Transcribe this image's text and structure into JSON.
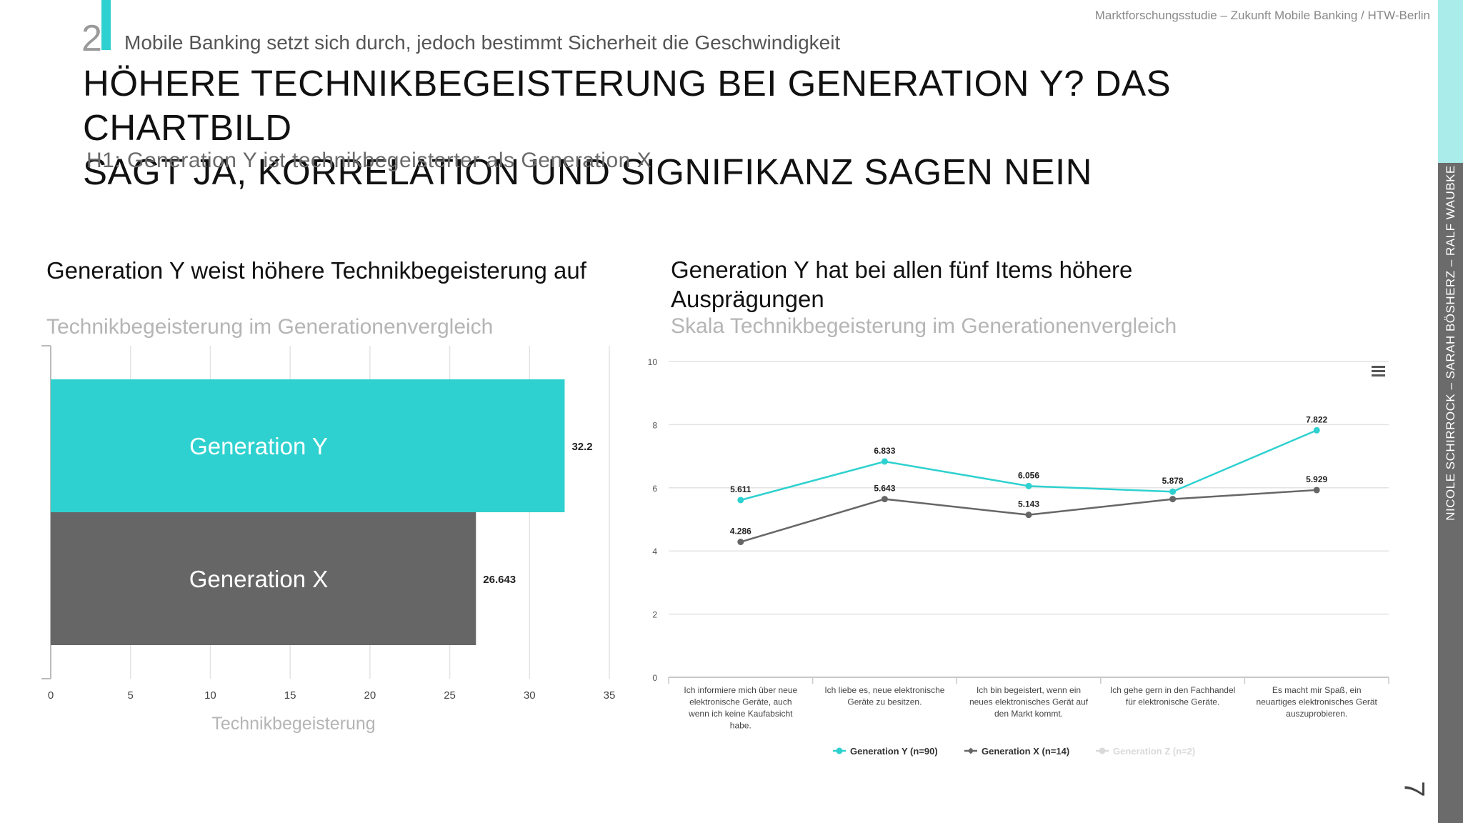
{
  "header": {
    "section_number": "2",
    "section_title": "Mobile Banking setzt sich durch, jedoch bestimmt Sicherheit die Geschwindigkeit",
    "study_title": "Marktforschungsstudie – Zukunft Mobile Banking / HTW-Berlin",
    "main_title_line1": "HÖHERE TECHNIKBEGEISTERUNG BEI GENERATION Y? DAS CHARTBILD",
    "main_title_line2": "SAGT JA, KORRELATION UND SIGNIFIKANZ SAGEN NEIN",
    "subtitle": "H1: Generation Y ist technikbegeisterter als Generation X"
  },
  "sidebar": {
    "credit": "NICOLE SCHIRROCK – SARAH BÖSHERZ – RALF WAUBKE",
    "page_number": "7"
  },
  "colors": {
    "accent": "#2ed1cf",
    "gen_y": "#2ed1cf",
    "gen_x": "#666667",
    "gen_z": "#d9d9d9",
    "grid": "#e3e3e3"
  },
  "left_panel": {
    "heading": "Generation Y weist höhere Technikbegeisterung auf",
    "sub": "Technikbegeisterung im Generationenvergleich"
  },
  "right_panel": {
    "heading": "Generation Y hat bei allen fünf Items höhere Ausprägungen",
    "sub": "Skala Technikbegeisterung im Generationenvergleich",
    "menu_icon": "hamburger-menu-icon"
  },
  "chart_data": [
    {
      "type": "bar",
      "orientation": "horizontal",
      "categories": [
        "Generation Y",
        "Generation X"
      ],
      "values": [
        32.2,
        26.643
      ],
      "value_labels": [
        "32.2",
        "26.643"
      ],
      "xlabel": "Technikbegeisterung",
      "xlim": [
        0,
        35
      ],
      "xticks": [
        "0",
        "5",
        "10",
        "15",
        "20",
        "25",
        "30",
        "35"
      ],
      "grid": true
    },
    {
      "type": "line",
      "categories": [
        [
          "Ich informiere mich über neue",
          "elektronische Geräte, auch",
          "wenn ich keine Kaufabsicht",
          "habe."
        ],
        [
          "Ich liebe es, neue elektronische",
          "Geräte zu besitzen."
        ],
        [
          "Ich bin begeistert, wenn ein",
          "neues elektronisches Gerät auf",
          "den Markt kommt."
        ],
        [
          "Ich gehe gern in den Fachhandel",
          "für elektronische Geräte."
        ],
        [
          "Es macht mir Spaß, ein",
          "neuartiges elektronisches Gerät",
          "auszuprobieren."
        ]
      ],
      "series": [
        {
          "name": "Generation Y (n=90)",
          "values": [
            5.611,
            6.833,
            6.056,
            5.878,
            7.822
          ],
          "labels": [
            "5.611",
            "6.833",
            "6.056",
            "5.878",
            "7.822"
          ],
          "visible": true
        },
        {
          "name": "Generation X (n=14)",
          "values": [
            4.286,
            5.643,
            5.143,
            5.643,
            5.929
          ],
          "labels": [
            "4.286",
            "5.643",
            "5.143",
            "",
            "5.929"
          ],
          "visible": true
        },
        {
          "name": "Generation Z (n=2)",
          "visible": false
        }
      ],
      "ylim": [
        0,
        10
      ],
      "yticks": [
        "0",
        "2",
        "4",
        "6",
        "8",
        "10"
      ],
      "grid": true,
      "legend_position": "bottom"
    }
  ]
}
